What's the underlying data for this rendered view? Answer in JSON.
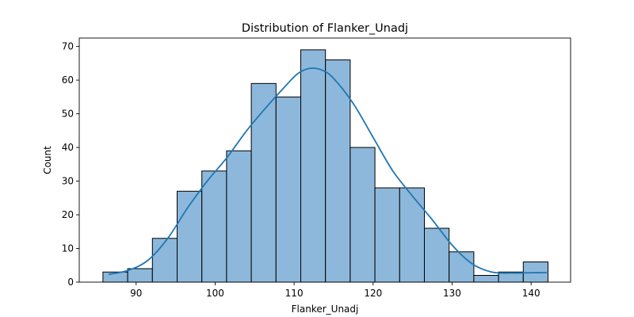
{
  "chart_data": {
    "type": "histogram",
    "title": "Distribution of Flanker_Unadj",
    "xlabel": "Flanker_Unadj",
    "ylabel": "Count",
    "xlim": [
      82.8,
      145
    ],
    "ylim": [
      0,
      72.5
    ],
    "xticks": [
      90,
      100,
      110,
      120,
      130,
      140
    ],
    "yticks": [
      0,
      10,
      20,
      30,
      40,
      50,
      60,
      70
    ],
    "bin_start": 85.8,
    "bin_width": 3.13,
    "counts": [
      3,
      4,
      13,
      27,
      33,
      39,
      59,
      55,
      69,
      66,
      40,
      28,
      28,
      16,
      9,
      2,
      3,
      6
    ],
    "kde": {
      "x": [
        86.5,
        89,
        91.5,
        94,
        96.5,
        99,
        101.5,
        104,
        106.5,
        109,
        110.5,
        112,
        113.5,
        115,
        117.5,
        120,
        122.5,
        125,
        127.5,
        130,
        132.5,
        135,
        137.5,
        140,
        142
      ],
      "y": [
        2.3,
        3.5,
        6.5,
        13,
        22,
        30,
        37,
        45,
        52,
        58.5,
        62,
        63.5,
        63,
        60.5,
        53,
        43,
        33,
        25.5,
        18.5,
        11,
        5.5,
        3,
        2.7,
        2.8,
        2.8
      ]
    },
    "colors": {
      "bar_fill": "#8db8db",
      "bar_edge": "#000000",
      "kde_line": "#1f77b4"
    }
  }
}
